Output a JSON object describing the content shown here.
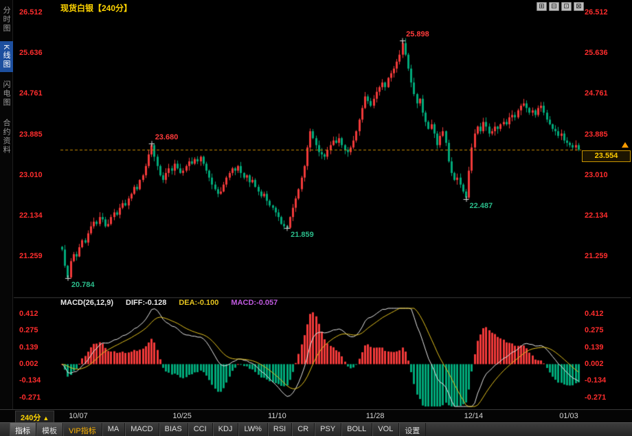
{
  "header": {
    "title": "现货白银【240分】",
    "window_controls": [
      {
        "name": "layout-grid-icon",
        "glyph": "⊞"
      },
      {
        "name": "layout-rows-icon",
        "glyph": "⊟"
      },
      {
        "name": "layout-single-icon",
        "glyph": "⊡"
      },
      {
        "name": "layout-close-icon",
        "glyph": "⊠"
      }
    ]
  },
  "sidebar": {
    "tabs": [
      {
        "label": "分时图",
        "name": "tab-timeshare-chart",
        "active": false
      },
      {
        "label": "K线图",
        "name": "tab-kline-chart",
        "active": true
      },
      {
        "label": "闪电图",
        "name": "tab-lightning-chart",
        "active": false
      },
      {
        "label": "合约资料",
        "name": "tab-contract-info",
        "active": false
      }
    ]
  },
  "main_chart": {
    "current_price": "23.554",
    "current_price_value": 23.554
  },
  "chart_data": {
    "type": "candlestick",
    "title": "现货白银",
    "interval": "240分",
    "y_axis": {
      "labels": [
        "26.512",
        "25.636",
        "24.761",
        "23.885",
        "23.010",
        "22.134",
        "21.259"
      ],
      "values": [
        26.512,
        25.636,
        24.761,
        23.885,
        23.01,
        22.134,
        21.259
      ]
    },
    "x_ticks": [
      {
        "label": "10/07",
        "index": 6
      },
      {
        "label": "10/25",
        "index": 42
      },
      {
        "label": "11/10",
        "index": 75
      },
      {
        "label": "11/28",
        "index": 109
      },
      {
        "label": "12/14",
        "index": 143
      },
      {
        "label": "01/03",
        "index": 176
      }
    ],
    "closes": [
      21.4,
      21.05,
      20.8,
      21.15,
      21.3,
      21.25,
      21.45,
      21.6,
      21.55,
      21.75,
      21.9,
      22.0,
      21.95,
      22.1,
      22.05,
      21.9,
      21.95,
      22.1,
      22.2,
      22.15,
      22.3,
      22.4,
      22.35,
      22.5,
      22.6,
      22.75,
      22.7,
      22.9,
      23.0,
      23.2,
      23.45,
      23.65,
      23.4,
      23.2,
      23.0,
      22.9,
      23.05,
      23.15,
      23.1,
      23.25,
      23.15,
      23.05,
      23.1,
      23.2,
      23.3,
      23.25,
      23.35,
      23.3,
      23.4,
      23.25,
      23.1,
      22.95,
      22.8,
      22.7,
      22.6,
      22.65,
      22.8,
      22.95,
      23.05,
      23.15,
      23.1,
      23.2,
      23.05,
      22.95,
      23.0,
      22.85,
      22.9,
      22.75,
      22.65,
      22.55,
      22.6,
      22.45,
      22.35,
      22.3,
      22.2,
      22.1,
      21.95,
      21.9,
      21.87,
      22.1,
      22.3,
      22.5,
      22.7,
      22.95,
      23.2,
      23.6,
      23.95,
      23.8,
      23.65,
      23.5,
      23.45,
      23.4,
      23.55,
      23.65,
      23.75,
      23.7,
      23.8,
      23.65,
      23.55,
      23.5,
      23.6,
      23.75,
      23.95,
      24.2,
      24.45,
      24.7,
      24.6,
      24.5,
      24.65,
      24.8,
      24.9,
      25.0,
      24.9,
      25.1,
      25.2,
      25.3,
      25.45,
      25.6,
      25.85,
      25.6,
      25.3,
      25.0,
      24.75,
      24.55,
      24.65,
      24.35,
      24.15,
      24.0,
      24.1,
      23.9,
      23.65,
      23.85,
      23.95,
      23.7,
      23.3,
      23.05,
      22.9,
      22.95,
      22.8,
      22.65,
      22.52,
      23.1,
      23.6,
      23.9,
      24.05,
      23.95,
      24.15,
      24.05,
      23.9,
      23.95,
      24.05,
      24.0,
      24.1,
      24.15,
      24.1,
      24.25,
      24.3,
      24.25,
      24.4,
      24.5,
      24.55,
      24.45,
      24.35,
      24.4,
      24.3,
      24.45,
      24.5,
      24.35,
      24.2,
      24.1,
      24.0,
      23.95,
      23.85,
      23.9,
      23.75,
      23.7,
      23.65,
      23.6,
      23.65,
      23.554
    ],
    "extremes": {
      "2": {
        "low": 20.784
      },
      "31": {
        "high": 23.68
      },
      "78": {
        "low": 21.859
      },
      "118": {
        "high": 25.898
      },
      "140": {
        "low": 22.487
      }
    },
    "annotations": [
      {
        "index": 2,
        "type": "low",
        "value": "20.784"
      },
      {
        "index": 31,
        "type": "high",
        "value": "23.680"
      },
      {
        "index": 78,
        "type": "low",
        "value": "21.859"
      },
      {
        "index": 118,
        "type": "high",
        "value": "25.898"
      },
      {
        "index": 140,
        "type": "low",
        "value": "22.487"
      }
    ],
    "macd": {
      "params": "MACD(26,12,9)",
      "diff_label": "DIFF:-0.128",
      "dea_label": "DEA:-0.100",
      "macd_label": "MACD:-0.057",
      "axis_labels": [
        "0.412",
        "0.275",
        "0.139",
        "0.002",
        "-0.134",
        "-0.271"
      ],
      "axis_values": [
        0.412,
        0.275,
        0.139,
        0.002,
        -0.134,
        -0.271
      ]
    }
  },
  "bottom": {
    "timeframe": "240分",
    "timeframe_arrow": "▲",
    "toolbar": [
      {
        "label": "指标",
        "name": "indicator-tab",
        "style": "tab-active"
      },
      {
        "label": "模板",
        "name": "template-tab",
        "style": "tab"
      },
      {
        "label": "VIP指标",
        "name": "vip-indicator-button",
        "style": "accent"
      },
      {
        "label": "MA",
        "name": "ma-button"
      },
      {
        "label": "MACD",
        "name": "macd-button"
      },
      {
        "label": "BIAS",
        "name": "bias-button"
      },
      {
        "label": "CCI",
        "name": "cci-button"
      },
      {
        "label": "KDJ",
        "name": "kdj-button"
      },
      {
        "label": "LW%",
        "name": "lwr-button"
      },
      {
        "label": "RSI",
        "name": "rsi-button"
      },
      {
        "label": "CR",
        "name": "cr-button"
      },
      {
        "label": "PSY",
        "name": "psy-button"
      },
      {
        "label": "BOLL",
        "name": "boll-button"
      },
      {
        "label": "VOL",
        "name": "vol-button"
      },
      {
        "label": "设置",
        "name": "settings-button"
      }
    ]
  },
  "colors": {
    "up": "#f23a3a",
    "down": "#00a97a",
    "axis": "#ff2d2d",
    "price_line": "#c88a00",
    "diff_line": "#e8e8e8",
    "dea_line": "#e6c41f",
    "macd_value": "#c05ae0",
    "annotation_high": "#ff3b3b",
    "annotation_low": "#2bbd8b",
    "accent_yellow": "#ffd400"
  }
}
